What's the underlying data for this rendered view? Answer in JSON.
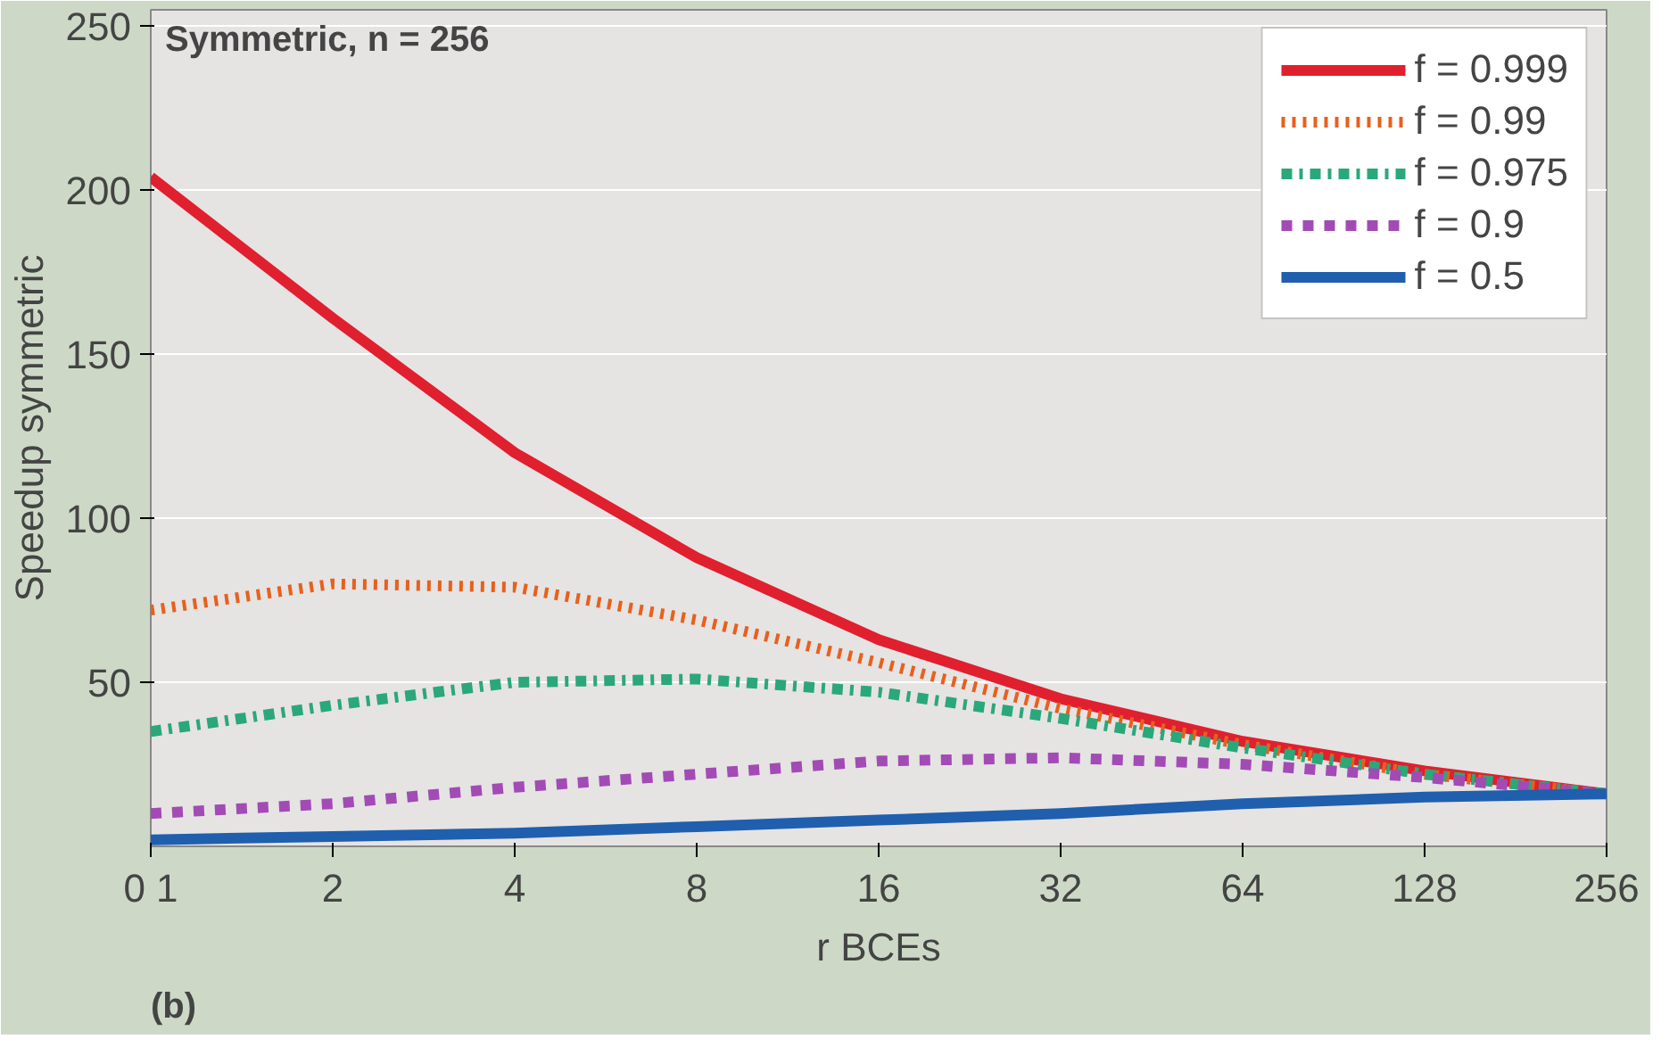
{
  "chart_data": {
    "type": "line",
    "title": "Symmetric, n = 256",
    "xlabel": "r BCEs",
    "ylabel": "Speedup symmetric",
    "annotations": [
      "(b)"
    ],
    "log": "x",
    "x": [
      1,
      2,
      4,
      8,
      16,
      32,
      64,
      128,
      256
    ],
    "xlim": [
      1,
      256
    ],
    "xticks": [
      {
        "value": 1,
        "label": "0 1"
      },
      2,
      4,
      8,
      16,
      32,
      64,
      128,
      256
    ],
    "ylim": [
      0,
      255
    ],
    "yticks": [
      50,
      100,
      150,
      200,
      250
    ],
    "grid": "y",
    "legend": "top right",
    "series": [
      {
        "name": "f = 0.999",
        "color": "#e0202e",
        "line_style": "solid",
        "values": [
          204,
          161,
          120,
          88,
          63,
          45,
          32,
          23,
          16
        ]
      },
      {
        "name": "f = 0.99",
        "color": "#e8601c",
        "line_style": "dotted",
        "values": [
          72,
          80,
          79,
          69,
          56,
          42,
          31,
          22,
          16
        ]
      },
      {
        "name": "f = 0.975",
        "color": "#2aa87a",
        "line_style": "dashdot",
        "values": [
          35,
          43,
          50,
          51,
          47,
          39,
          30,
          22,
          16
        ]
      },
      {
        "name": "f = 0.9",
        "color": "#a24bb5",
        "line_style": "dashed",
        "values": [
          10,
          13,
          18,
          22,
          26,
          27,
          25,
          21,
          16
        ]
      },
      {
        "name": "f = 0.5",
        "color": "#1f5fae",
        "line_style": "solid",
        "values": [
          2,
          3,
          4,
          6,
          8,
          10,
          13,
          15,
          16
        ]
      }
    ]
  }
}
